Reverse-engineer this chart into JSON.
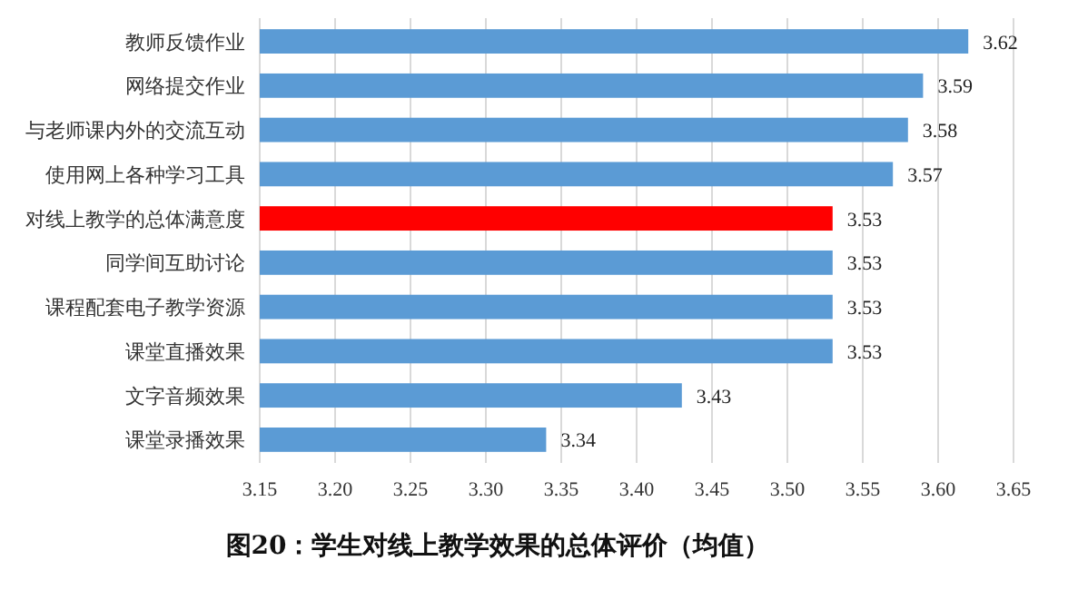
{
  "chart_data": {
    "type": "bar",
    "orientation": "horizontal",
    "title": "图20：学生对线上教学效果的总体评价（均值）",
    "categories": [
      "教师反馈作业",
      "网络提交作业",
      "与老师课内外的交流互动",
      "使用网上各种学习工具",
      "对线上教学的总体满意度",
      "同学间互助讨论",
      "课程配套电子教学资源",
      "课堂直播效果",
      "文字音频效果",
      "课堂录播效果"
    ],
    "values": [
      3.62,
      3.59,
      3.58,
      3.57,
      3.53,
      3.53,
      3.53,
      3.53,
      3.43,
      3.34
    ],
    "colors": [
      "#5b9bd5",
      "#5b9bd5",
      "#5b9bd5",
      "#5b9bd5",
      "#ff0000",
      "#5b9bd5",
      "#5b9bd5",
      "#5b9bd5",
      "#5b9bd5",
      "#5b9bd5"
    ],
    "xlim": [
      3.15,
      3.65
    ],
    "xticks": [
      3.15,
      {
        "value": 3.2,
        "label": "3.20"
      },
      3.25,
      {
        "value": 3.3,
        "label": "3.30"
      },
      3.35,
      {
        "value": 3.4,
        "label": "3.40"
      },
      3.45,
      {
        "value": 3.5,
        "label": "3.50"
      },
      3.55,
      {
        "value": 3.6,
        "label": "3.60"
      },
      3.65
    ],
    "grid": "x",
    "data_labels": true
  }
}
